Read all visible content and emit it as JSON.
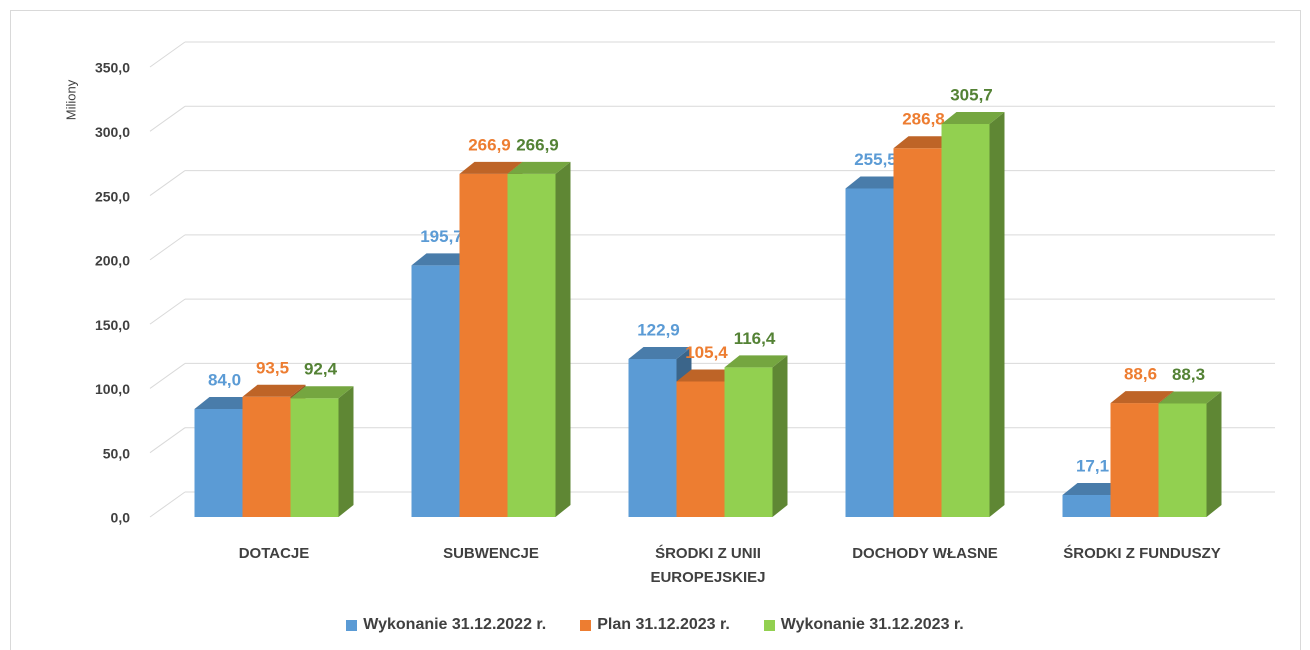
{
  "chart_data": {
    "type": "bar3d",
    "y_label": "Miliony",
    "categories": [
      "DOTACJE",
      "SUBWENCJE",
      "ŚRODKI Z UNII EUROPEJSKIEJ",
      "DOCHODY WŁASNE",
      "ŚRODKI Z FUNDUSZY"
    ],
    "series": [
      {
        "name": "Wykonanie 31.12.2022 r.",
        "color": "#5b9bd5",
        "label_color": "#5b9bd5",
        "values": [
          84.0,
          195.7,
          122.9,
          255.5,
          17.1
        ],
        "value_labels": [
          "84,0",
          "195,7",
          "122,9",
          "255,5",
          "17,1"
        ]
      },
      {
        "name": "Plan 31.12.2023 r.",
        "color": "#ed7d31",
        "label_color": "#ed7d31",
        "values": [
          93.5,
          266.9,
          105.4,
          286.8,
          88.6
        ],
        "value_labels": [
          "93,5",
          "266,9",
          "105,4",
          "286,8",
          "88,6"
        ]
      },
      {
        "name": "Wykonanie 31.12.2023 r.",
        "color": "#92d050",
        "label_color": "#548235",
        "values": [
          92.4,
          266.9,
          116.4,
          305.7,
          88.3
        ],
        "value_labels": [
          "92,4",
          "266,9",
          "116,4",
          "305,7",
          "88,3"
        ]
      }
    ],
    "ylim": [
      0,
      350
    ],
    "yticks": [
      {
        "value": 0,
        "label": "0,0"
      },
      {
        "value": 50,
        "label": "50,0"
      },
      {
        "value": 100,
        "label": "100,0"
      },
      {
        "value": 150,
        "label": "150,0"
      },
      {
        "value": 200,
        "label": "200,0"
      },
      {
        "value": 250,
        "label": "250,0"
      },
      {
        "value": 300,
        "label": "300,0"
      },
      {
        "value": 350,
        "label": "350,0"
      }
    ],
    "grid": true,
    "legend": "bottom"
  }
}
